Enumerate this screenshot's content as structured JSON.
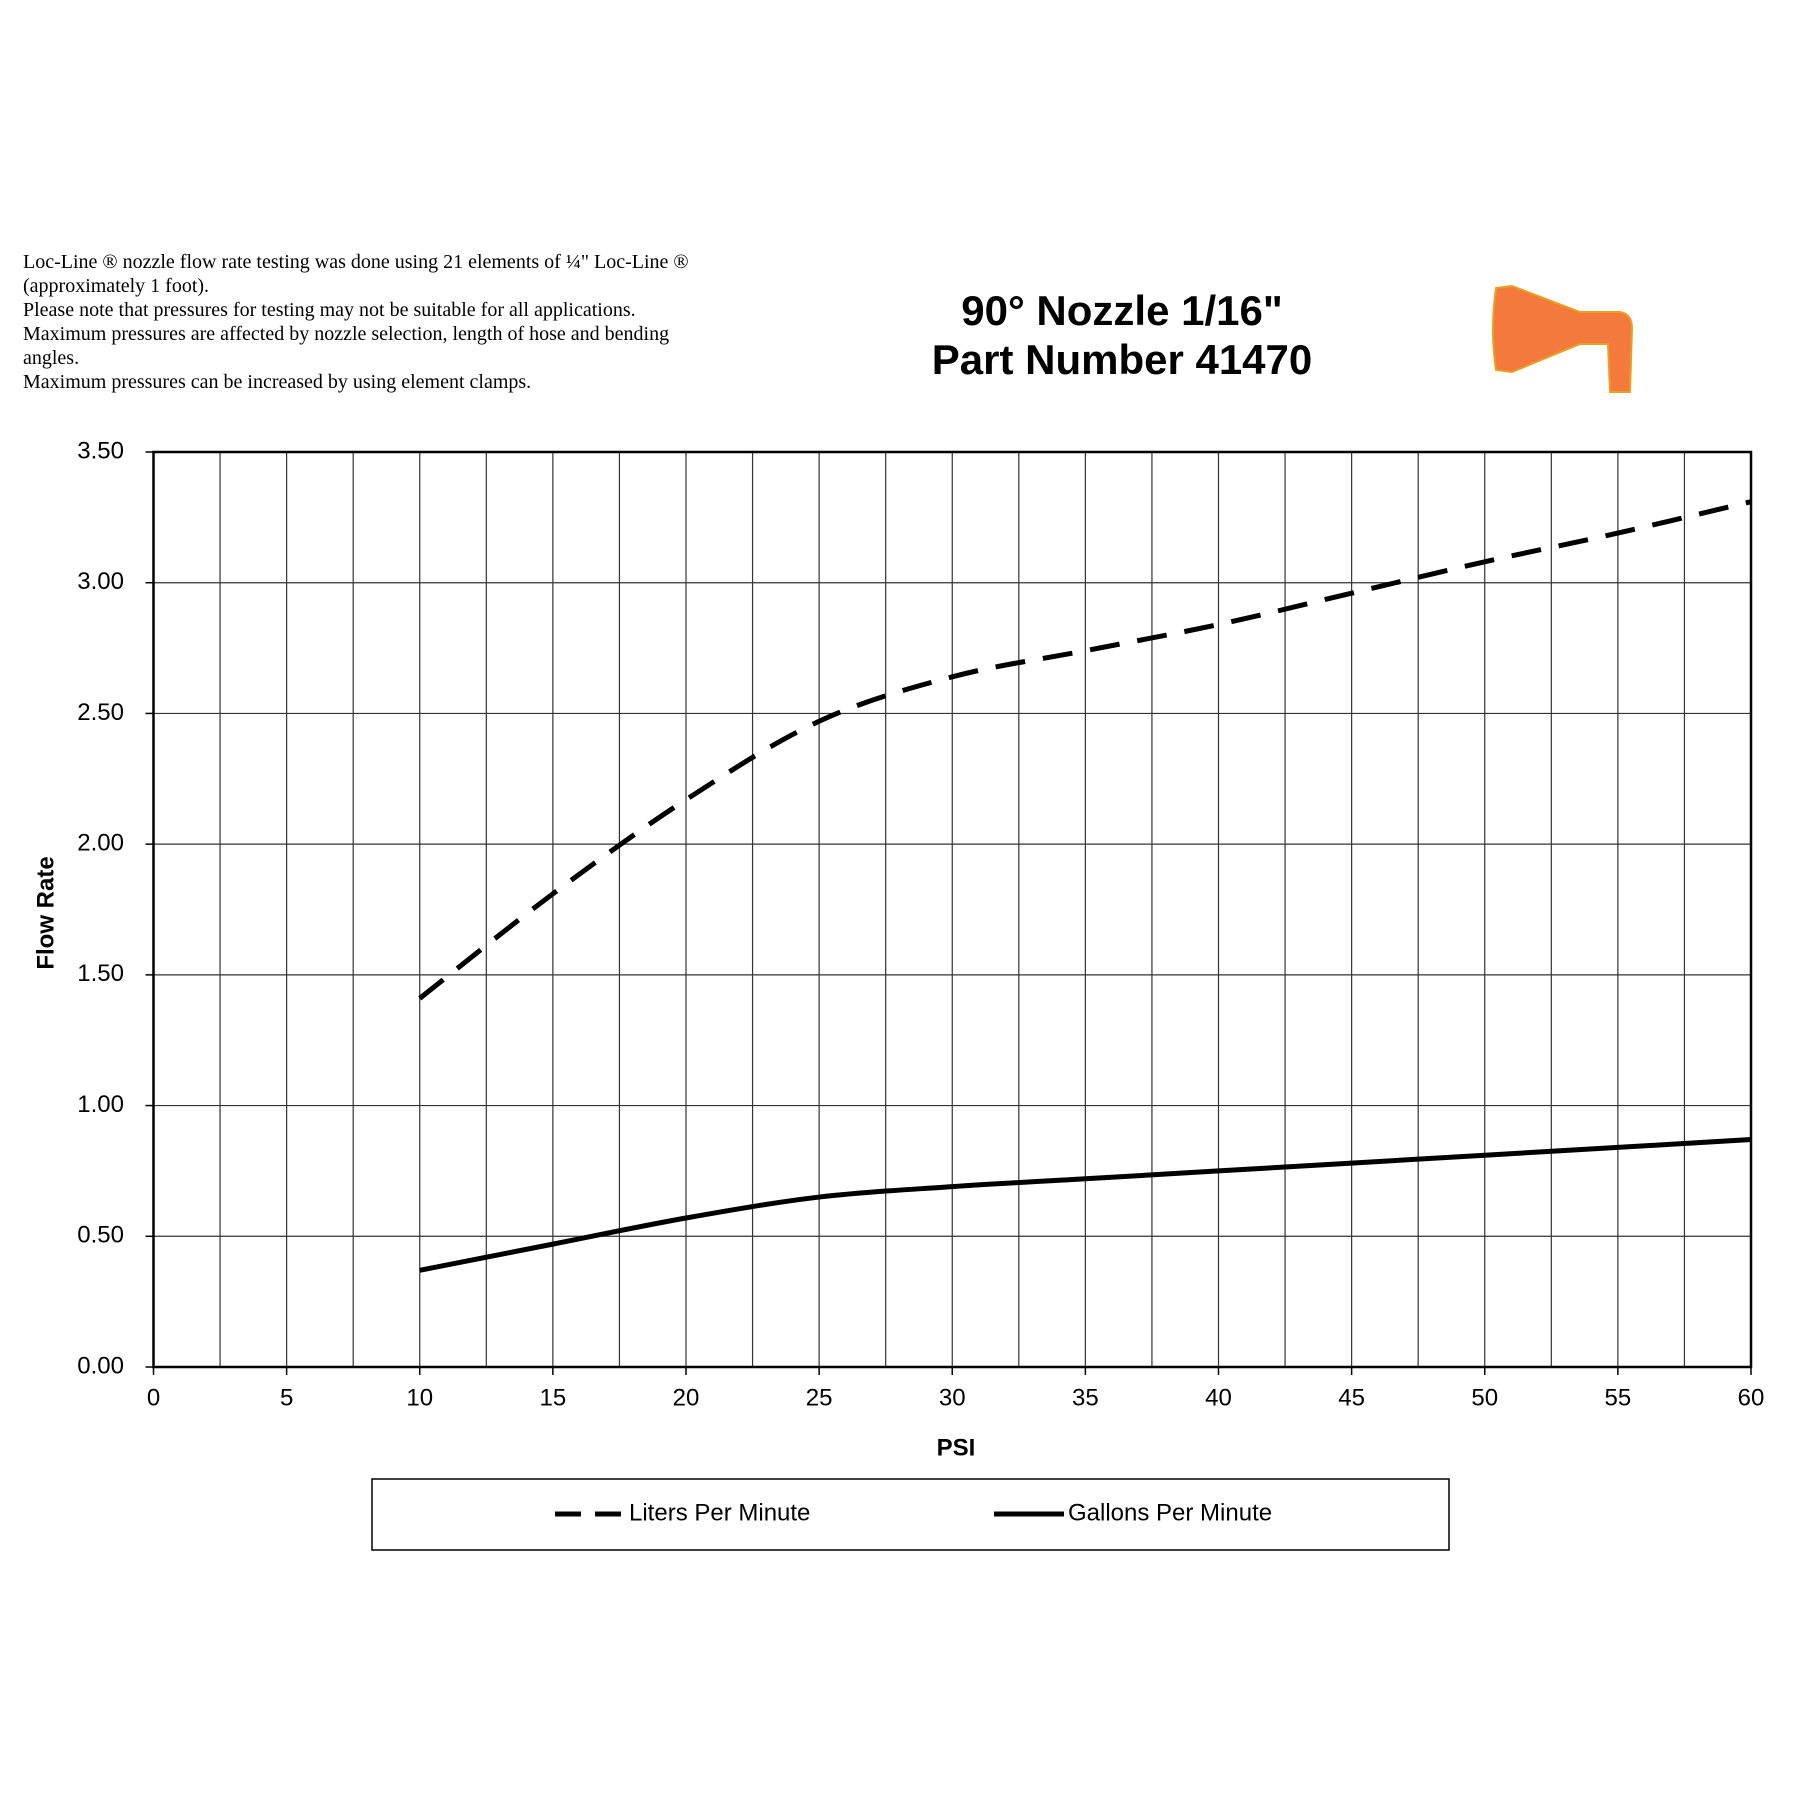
{
  "notes": [
    "Loc-Line ® nozzle flow rate testing was done using 21 elements of ¼\" Loc-Line ® (approximately 1 foot).",
    "Please note that pressures for testing may not be suitable for all applications.",
    "Maximum pressures are affected by nozzle selection, length of hose and bending angles.",
    "Maximum pressures can be increased by using element clamps."
  ],
  "chart_data": {
    "type": "line",
    "title": [
      "90° Nozzle 1/16\"",
      "Part Number 41470"
    ],
    "x_label": "PSI",
    "y_label": "Flow Rate",
    "x": [
      10,
      15,
      20,
      25,
      30,
      35,
      40,
      45,
      50,
      55,
      60
    ],
    "series": [
      {
        "name": "Liters Per Minute",
        "color": "#000000",
        "dashed": true,
        "values": [
          1.41,
          1.81,
          2.17,
          2.47,
          2.64,
          2.74,
          2.84,
          2.96,
          3.08,
          3.19,
          3.31
        ]
      },
      {
        "name": "Gallons Per Minute",
        "color": "#000000",
        "dashed": false,
        "values": [
          0.37,
          0.47,
          0.57,
          0.65,
          0.69,
          0.72,
          0.75,
          0.78,
          0.81,
          0.84,
          0.87
        ]
      }
    ],
    "xlim": [
      0,
      60
    ],
    "xticks": [
      0,
      5,
      10,
      15,
      20,
      25,
      30,
      35,
      40,
      45,
      50,
      55,
      60
    ],
    "x_minor_grid": [
      2.5,
      7.5,
      12.5,
      17.5,
      22.5,
      27.5,
      32.5,
      37.5,
      42.5,
      47.5,
      52.5,
      57.5
    ],
    "ylim": [
      0,
      3.5
    ],
    "yticks": [
      {
        "value": 0,
        "label": "0.00"
      },
      {
        "value": 0.5,
        "label": "0.50"
      },
      {
        "value": 1,
        "label": "1.00"
      },
      {
        "value": 1.5,
        "label": "1.50"
      },
      {
        "value": 2,
        "label": "2.00"
      },
      {
        "value": 2.5,
        "label": "2.50"
      },
      {
        "value": 3,
        "label": "3.00"
      },
      {
        "value": 3.5,
        "label": "3.50"
      }
    ],
    "grid": true,
    "legend": "bottom"
  }
}
